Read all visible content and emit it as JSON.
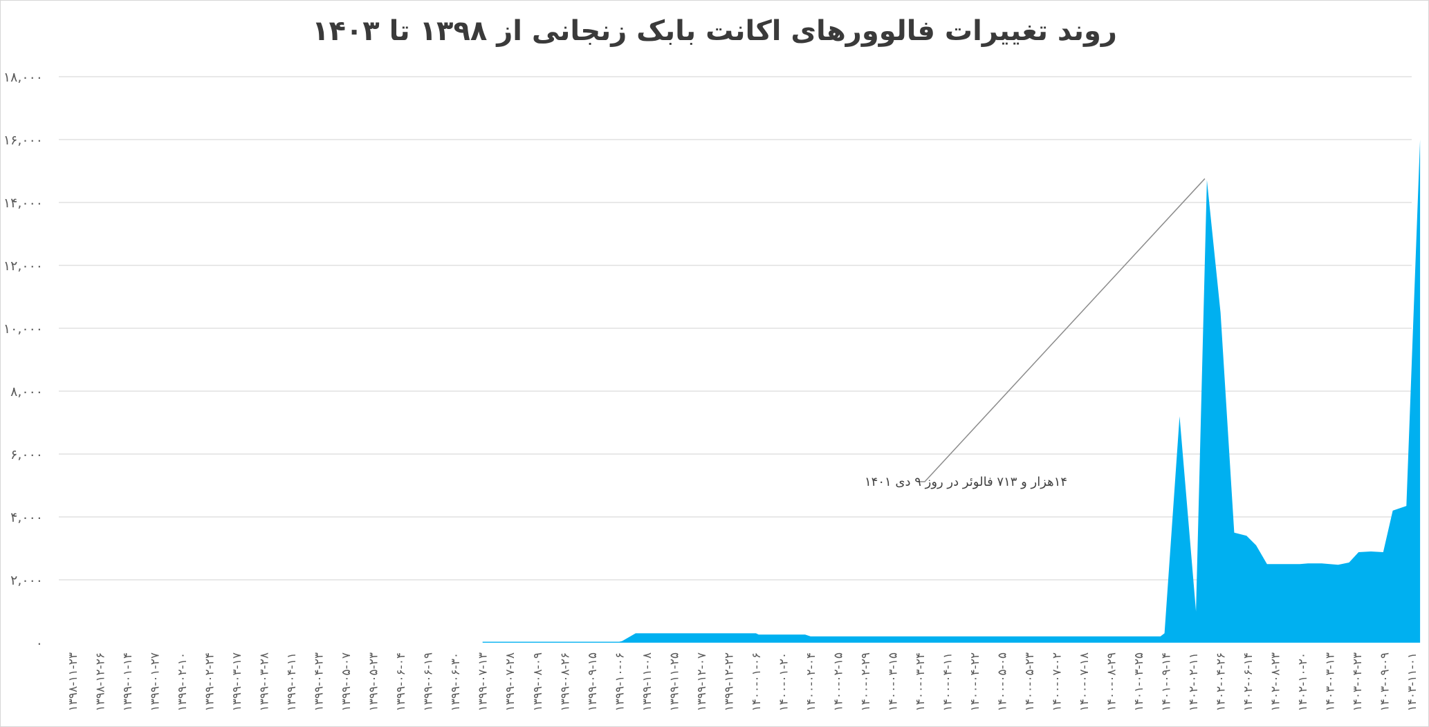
{
  "chart_data": {
    "type": "area",
    "title": "روند تغییرات فالوورهای اکانت بابک زنجانی از ۱۳۹۸ تا ۱۴۰۳",
    "xlabel": "",
    "ylabel": "",
    "ylim": [
      0,
      18000
    ],
    "grid": true,
    "legend": "none",
    "y_ticks": [
      0,
      2000,
      4000,
      6000,
      8000,
      10000,
      12000,
      14000,
      16000,
      18000
    ],
    "y_tick_labels": [
      "۰",
      "۲,۰۰۰",
      "۴,۰۰۰",
      "۶,۰۰۰",
      "۸,۰۰۰",
      "۱۰,۰۰۰",
      "۱۲,۰۰۰",
      "۱۴,۰۰۰",
      "۱۶,۰۰۰",
      "۱۸,۰۰۰"
    ],
    "x_tick_labels": [
      "۱۳۹۸-۱۱-۲۳",
      "۱۳۹۸-۱۲-۲۶",
      "۱۳۹۹-۰۱-۱۴",
      "۱۳۹۹-۰۱-۲۷",
      "۱۳۹۹-۰۲-۱۰",
      "۱۳۹۹-۰۲-۲۴",
      "۱۳۹۹-۰۳-۱۷",
      "۱۳۹۹-۰۳-۲۸",
      "۱۳۹۹-۰۴-۱۱",
      "۱۳۹۹-۰۴-۲۳",
      "۱۳۹۹-۰۵-۰۷",
      "۱۳۹۹-۰۵-۲۳",
      "۱۳۹۹-۰۶-۰۴",
      "۱۳۹۹-۰۶-۱۹",
      "۱۳۹۹-۰۶-۳۰",
      "۱۳۹۹-۰۷-۱۳",
      "۱۳۹۹-۰۷-۲۸",
      "۱۳۹۹-۰۸-۰۹",
      "۱۳۹۹-۰۸-۲۶",
      "۱۳۹۹-۰۹-۱۵",
      "۱۳۹۹-۱۰-۰۶",
      "۱۳۹۹-۱۱-۰۸",
      "۱۳۹۹-۱۱-۲۵",
      "۱۳۹۹-۱۲-۰۷",
      "۱۳۹۹-۱۲-۲۲",
      "۱۴۰۰-۰۱-۰۶",
      "۱۴۰۰-۰۱-۲۰",
      "۱۴۰۰-۰۲-۰۴",
      "۱۴۰۰-۰۲-۱۵",
      "۱۴۰۰-۰۲-۲۹",
      "۱۴۰۰-۰۳-۱۵",
      "۱۴۰۰-۰۳-۲۴",
      "۱۴۰۰-۰۴-۱۱",
      "۱۴۰۰-۰۴-۲۲",
      "۱۴۰۰-۰۵-۰۵",
      "۱۴۰۰-۰۵-۲۳",
      "۱۴۰۰-۰۷-۰۲",
      "۱۴۰۰-۰۷-۱۸",
      "۱۴۰۰-۰۸-۲۹",
      "۱۴۰۱-۰۳-۲۵",
      "۱۴۰۱-۰۹-۱۴",
      "۱۴۰۲-۰۲-۱۱",
      "۱۴۰۲-۰۴-۲۶",
      "۱۴۰۲-۰۶-۱۴",
      "۱۴۰۲-۰۸-۲۳",
      "۱۴۰۲-۱۰-۲۰",
      "۱۴۰۳-۰۳-۱۳",
      "۱۴۰۳-۰۴-۲۳",
      "۱۴۰۳-۰۹-۰۹",
      "۱۴۰۳-۱۱-۰۱"
    ],
    "series": [
      {
        "color": "#00b0f0",
        "points": [
          [
            0,
            0
          ],
          [
            15.0,
            0
          ],
          [
            15.0,
            30
          ],
          [
            20.0,
            30
          ],
          [
            20.1,
            50
          ],
          [
            20.6,
            300
          ],
          [
            25.0,
            300
          ],
          [
            25.1,
            260
          ],
          [
            26.8,
            260
          ],
          [
            27.0,
            200
          ],
          [
            39.8,
            200
          ],
          [
            39.95,
            300
          ],
          [
            40.5,
            7200
          ],
          [
            41.1,
            1000
          ],
          [
            41.5,
            14713
          ],
          [
            42.0,
            10500
          ],
          [
            42.5,
            3500
          ],
          [
            42.95,
            3400
          ],
          [
            43.3,
            3100
          ],
          [
            43.7,
            2500
          ],
          [
            44.9,
            2500
          ],
          [
            45.2,
            2520
          ],
          [
            45.7,
            2520
          ],
          [
            46.3,
            2480
          ],
          [
            46.7,
            2550
          ],
          [
            47.05,
            2880
          ],
          [
            47.5,
            2900
          ],
          [
            47.95,
            2880
          ],
          [
            48.3,
            4200
          ],
          [
            48.8,
            4350
          ],
          [
            49.3,
            16000
          ]
        ]
      }
    ],
    "annotation": {
      "text": "۱۴هزار و ۷۱۳ فالوئر در روز ۹ دی ۱۴۰۱",
      "target": [
        41.5,
        14713
      ]
    }
  }
}
